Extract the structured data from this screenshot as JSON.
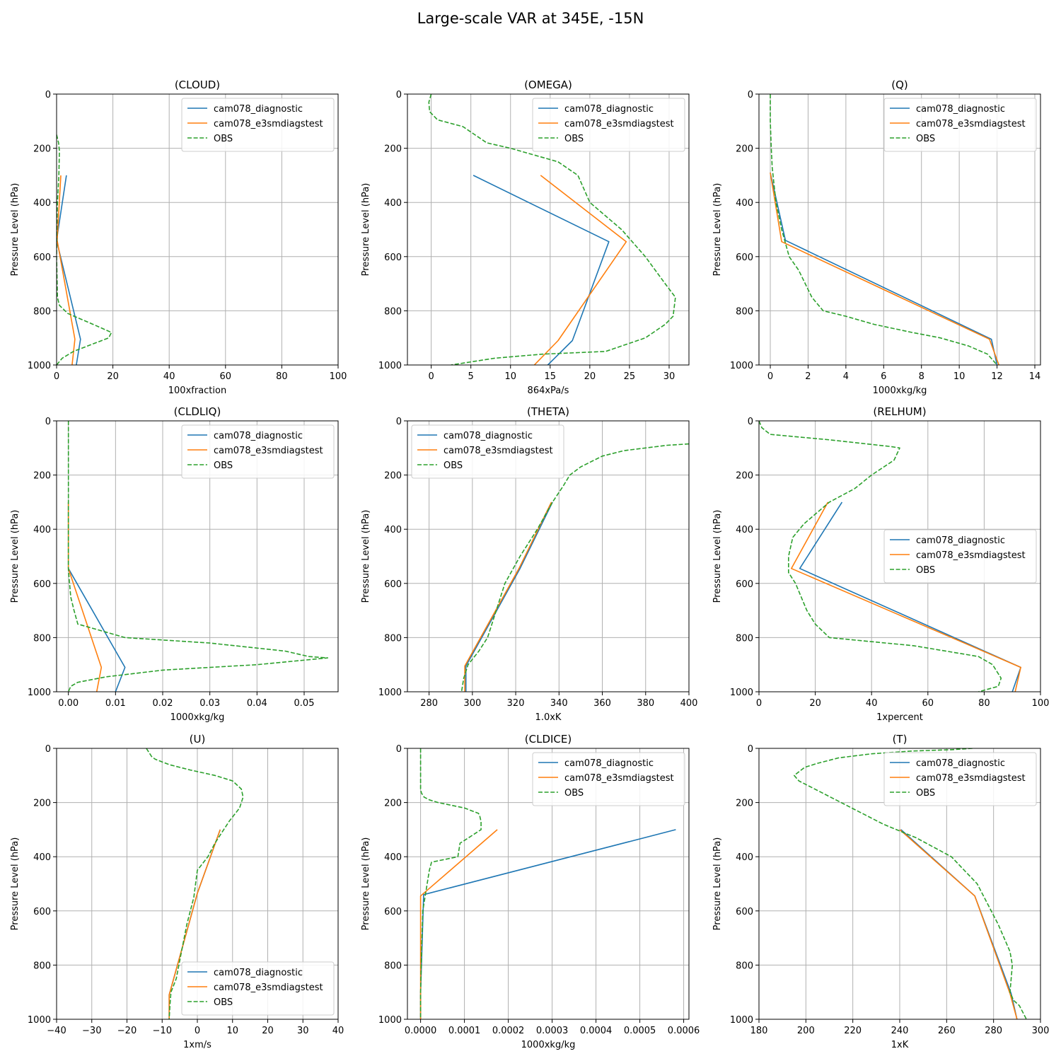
{
  "figure": {
    "title": "Large-scale VAR at 345E, -15N"
  },
  "colors": {
    "cam078_diagnostic": "#1f77b4",
    "cam078_e3smdiagstest": "#ff7f0e",
    "OBS": "#2ca02c",
    "grid": "#b0b0b0"
  },
  "chart_data": [
    {
      "type": "line",
      "title": "(CLOUD)",
      "xlabel": "100xfraction",
      "ylabel": "Pressure Level (hPa)",
      "xlim": [
        0,
        100
      ],
      "ylim": [
        1000,
        0
      ],
      "xticks": [
        0,
        20,
        40,
        60,
        80,
        100
      ],
      "xtick_labels": [
        "0",
        "20",
        "40",
        "60",
        "80",
        "100"
      ],
      "yticks": [
        0,
        200,
        400,
        600,
        800,
        1000
      ],
      "ytick_labels": [
        "0",
        "200",
        "400",
        "600",
        "800",
        "1000"
      ],
      "grid": true,
      "legend": "upper right",
      "series": [
        {
          "name": "cam078_diagnostic",
          "style": "solid",
          "x": [
            3.5,
            0.0,
            8.5,
            7.0
          ],
          "y": [
            300,
            540,
            905,
            1000
          ]
        },
        {
          "name": "cam078_e3smdiagstest",
          "style": "solid",
          "x": [
            1.5,
            0.2,
            6.5,
            5.5
          ],
          "y": [
            300,
            540,
            905,
            1000
          ]
        },
        {
          "name": "OBS",
          "style": "dashed",
          "x": [
            0.0,
            0.7,
            1.0,
            0.8,
            0.3,
            0.1,
            0.0,
            0.3,
            1.0,
            4.0,
            13.0,
            19.5,
            18.5,
            6.0,
            2.0,
            0.0
          ],
          "y": [
            150,
            180,
            210,
            300,
            400,
            500,
            600,
            750,
            780,
            810,
            850,
            880,
            900,
            950,
            975,
            1000
          ]
        }
      ]
    },
    {
      "type": "line",
      "title": "(OMEGA)",
      "xlabel": "864xPa/s",
      "ylabel": "Pressure Level (hPa)",
      "xlim": [
        -3,
        32.5
      ],
      "ylim": [
        1000,
        0
      ],
      "xticks": [
        0,
        5,
        10,
        15,
        20,
        25,
        30
      ],
      "xtick_labels": [
        "0",
        "5",
        "10",
        "15",
        "20",
        "25",
        "30"
      ],
      "yticks": [
        0,
        200,
        400,
        600,
        800,
        1000
      ],
      "ytick_labels": [
        "0",
        "200",
        "400",
        "600",
        "800",
        "1000"
      ],
      "grid": true,
      "legend": "upper right",
      "series": [
        {
          "name": "cam078_diagnostic",
          "style": "solid",
          "x": [
            5.3,
            22.4,
            17.8,
            14.7
          ],
          "y": [
            300,
            545,
            910,
            1000
          ]
        },
        {
          "name": "cam078_e3smdiagstest",
          "style": "solid",
          "x": [
            13.8,
            24.6,
            16.0,
            13.0
          ],
          "y": [
            300,
            545,
            910,
            1000
          ]
        },
        {
          "name": "OBS",
          "style": "dashed",
          "x": [
            0.0,
            -0.3,
            -0.2,
            0.8,
            4.0,
            7.0,
            10.0,
            16.0,
            18.5,
            20.0,
            22.0,
            24.0,
            27.0,
            29.5,
            30.8,
            30.5,
            29.5,
            27.0,
            22.0,
            14.0,
            8.0,
            2.5
          ],
          "y": [
            0,
            30,
            65,
            95,
            120,
            180,
            200,
            250,
            300,
            400,
            450,
            500,
            600,
            700,
            750,
            820,
            850,
            900,
            950,
            960,
            975,
            1000
          ]
        }
      ]
    },
    {
      "type": "line",
      "title": "(Q)",
      "xlabel": "1000xkg/kg",
      "ylabel": "Pressure Level (hPa)",
      "xlim": [
        -0.6,
        14.3
      ],
      "ylim": [
        1000,
        0
      ],
      "xticks": [
        0,
        2,
        4,
        6,
        8,
        10,
        12,
        14
      ],
      "xtick_labels": [
        "0",
        "2",
        "4",
        "6",
        "8",
        "10",
        "12",
        "14"
      ],
      "yticks": [
        0,
        200,
        400,
        600,
        800,
        1000
      ],
      "ytick_labels": [
        "0",
        "200",
        "400",
        "600",
        "800",
        "1000"
      ],
      "grid": true,
      "legend": "upper right",
      "series": [
        {
          "name": "cam078_diagnostic",
          "style": "solid",
          "x": [
            0.0,
            0.8,
            11.7,
            12.0
          ],
          "y": [
            290,
            540,
            905,
            1000
          ]
        },
        {
          "name": "cam078_e3smdiagstest",
          "style": "solid",
          "x": [
            0.0,
            0.6,
            11.6,
            12.1
          ],
          "y": [
            290,
            545,
            905,
            1000
          ]
        },
        {
          "name": "OBS",
          "style": "dashed",
          "x": [
            0.0,
            0.0,
            0.05,
            0.1,
            0.3,
            0.6,
            1.0,
            1.5,
            2.2,
            2.8,
            4.0,
            5.5,
            7.5,
            9.0,
            10.5,
            11.5,
            12.0
          ],
          "y": [
            0,
            100,
            200,
            270,
            400,
            500,
            600,
            650,
            750,
            800,
            820,
            850,
            880,
            900,
            930,
            960,
            1000
          ]
        }
      ]
    },
    {
      "type": "line",
      "title": "(CLDLIQ)",
      "xlabel": "1000xkg/kg",
      "ylabel": "Pressure Level (hPa)",
      "xlim": [
        -0.0025,
        0.0572
      ],
      "ylim": [
        1000,
        0
      ],
      "xticks": [
        0.0,
        0.01,
        0.02,
        0.03,
        0.04,
        0.05
      ],
      "xtick_labels": [
        "0.00",
        "0.01",
        "0.02",
        "0.03",
        "0.04",
        "0.05"
      ],
      "yticks": [
        0,
        200,
        400,
        600,
        800,
        1000
      ],
      "ytick_labels": [
        "0",
        "200",
        "400",
        "600",
        "800",
        "1000"
      ],
      "grid": true,
      "legend": "upper right",
      "series": [
        {
          "name": "cam078_diagnostic",
          "style": "solid",
          "x": [
            0.0,
            0.0,
            0.012,
            0.01
          ],
          "y": [
            300,
            545,
            910,
            1000
          ]
        },
        {
          "name": "cam078_e3smdiagstest",
          "style": "solid",
          "x": [
            0.0,
            0.0,
            0.007,
            0.006
          ],
          "y": [
            300,
            545,
            910,
            1000
          ]
        },
        {
          "name": "OBS",
          "style": "dashed",
          "x": [
            0.0,
            0.0,
            0.0,
            0.0,
            0.0005,
            0.0012,
            0.002,
            0.008,
            0.012,
            0.03,
            0.046,
            0.051,
            0.055,
            0.04,
            0.02,
            0.008,
            0.002,
            0.0005,
            0.0
          ],
          "y": [
            0,
            200,
            400,
            550,
            650,
            700,
            750,
            780,
            800,
            820,
            850,
            870,
            875,
            900,
            920,
            945,
            965,
            980,
            1000
          ]
        }
      ]
    },
    {
      "type": "line",
      "title": "(THETA)",
      "xlabel": "1.0xK",
      "ylabel": "Pressure Level (hPa)",
      "xlim": [
        270,
        400
      ],
      "ylim": [
        1000,
        0
      ],
      "xticks": [
        280,
        300,
        320,
        340,
        360,
        380,
        400
      ],
      "xtick_labels": [
        "280",
        "300",
        "320",
        "340",
        "360",
        "380",
        "400"
      ],
      "yticks": [
        0,
        200,
        400,
        600,
        800,
        1000
      ],
      "ytick_labels": [
        "0",
        "200",
        "400",
        "600",
        "800",
        "1000"
      ],
      "grid": true,
      "legend": "upper left",
      "series": [
        {
          "name": "cam078_diagnostic",
          "style": "solid",
          "x": [
            337.0,
            322.0,
            297.0,
            297.0
          ],
          "y": [
            300,
            545,
            905,
            1000
          ]
        },
        {
          "name": "cam078_e3smdiagstest",
          "style": "solid",
          "x": [
            336.5,
            321.5,
            296.5,
            296.5
          ],
          "y": [
            300,
            545,
            905,
            1000
          ]
        },
        {
          "name": "OBS",
          "style": "dashed",
          "x": [
            400,
            390,
            380,
            370,
            360,
            350,
            345,
            342,
            337,
            330,
            322,
            315,
            307,
            303,
            298,
            296,
            295
          ],
          "y": [
            85,
            90,
            100,
            110,
            130,
            170,
            200,
            240,
            300,
            400,
            500,
            600,
            800,
            850,
            900,
            950,
            1000
          ]
        }
      ]
    },
    {
      "type": "line",
      "title": "(RELHUM)",
      "xlabel": "1xpercent",
      "ylabel": "Pressure Level (hPa)",
      "xlim": [
        0,
        100
      ],
      "ylim": [
        1000,
        0
      ],
      "xticks": [
        0,
        20,
        40,
        60,
        80,
        100
      ],
      "xtick_labels": [
        "0",
        "20",
        "40",
        "60",
        "80",
        "100"
      ],
      "yticks": [
        0,
        200,
        400,
        600,
        800,
        1000
      ],
      "ytick_labels": [
        "0",
        "200",
        "400",
        "600",
        "800",
        "1000"
      ],
      "grid": true,
      "legend": "center right",
      "series": [
        {
          "name": "cam078_diagnostic",
          "style": "solid",
          "x": [
            29.5,
            14.5,
            93.0,
            90.0
          ],
          "y": [
            300,
            545,
            910,
            1000
          ]
        },
        {
          "name": "cam078_e3smdiagstest",
          "style": "solid",
          "x": [
            24.5,
            11.5,
            93.0,
            91.0
          ],
          "y": [
            300,
            545,
            910,
            1000
          ]
        },
        {
          "name": "OBS",
          "style": "dashed",
          "x": [
            0,
            1,
            4,
            25,
            47,
            50,
            48,
            40,
            34,
            25,
            16,
            12,
            10.5,
            10.5,
            13,
            15,
            17,
            20,
            25,
            55,
            78,
            83,
            86,
            85,
            78
          ],
          "y": [
            0,
            25,
            50,
            70,
            95,
            100,
            145,
            200,
            250,
            300,
            380,
            430,
            500,
            560,
            600,
            650,
            700,
            750,
            800,
            830,
            870,
            900,
            950,
            980,
            1000
          ]
        }
      ]
    },
    {
      "type": "line",
      "title": "(U)",
      "xlabel": "1xm/s",
      "ylabel": "Pressure Level (hPa)",
      "xlim": [
        -40,
        40
      ],
      "ylim": [
        1000,
        0
      ],
      "xticks": [
        -40,
        -30,
        -20,
        -10,
        0,
        10,
        20,
        30,
        40
      ],
      "xtick_labels": [
        "−40",
        "−30",
        "−20",
        "−10",
        "0",
        "10",
        "20",
        "30",
        "40"
      ],
      "yticks": [
        0,
        200,
        400,
        600,
        800,
        1000
      ],
      "ytick_labels": [
        "0",
        "200",
        "400",
        "600",
        "800",
        "1000"
      ],
      "grid": true,
      "legend": "lower right",
      "series": [
        {
          "name": "cam078_diagnostic",
          "style": "solid",
          "x": [
            6.5,
            0.0,
            -8.0,
            -8.0
          ],
          "y": [
            300,
            535,
            910,
            1000
          ]
        },
        {
          "name": "cam078_e3smdiagstest",
          "style": "solid",
          "x": [
            6.5,
            0.0,
            -8.0,
            -8.0
          ],
          "y": [
            300,
            535,
            910,
            1000
          ]
        },
        {
          "name": "OBS",
          "style": "dashed",
          "x": [
            -14.5,
            -13.0,
            -12.0,
            -8.0,
            -2.0,
            5.0,
            10.0,
            12.5,
            13.0,
            12.0,
            9.0,
            5.0,
            3.0,
            0.0,
            -1.0,
            -3.0,
            -4.5,
            -6.0,
            -7.5,
            -7.8,
            -8.0
          ],
          "y": [
            0,
            30,
            40,
            60,
            80,
            100,
            120,
            150,
            180,
            220,
            270,
            350,
            400,
            450,
            550,
            650,
            750,
            850,
            900,
            950,
            1000
          ]
        }
      ]
    },
    {
      "type": "line",
      "title": "(CLDICE)",
      "xlabel": "1000xkg/kg",
      "ylabel": "Pressure Level (hPa)",
      "xlim": [
        -3e-05,
        0.000612
      ],
      "ylim": [
        1000,
        0
      ],
      "xticks": [
        0.0,
        0.0001,
        0.0002,
        0.0003,
        0.0004,
        0.0005,
        0.0006
      ],
      "xtick_labels": [
        "0.0000",
        "0.0001",
        "0.0002",
        "0.0003",
        "0.0004",
        "0.0005",
        "0.0006"
      ],
      "yticks": [
        0,
        200,
        400,
        600,
        800,
        1000
      ],
      "ytick_labels": [
        "0",
        "200",
        "400",
        "600",
        "800",
        "1000"
      ],
      "grid": true,
      "legend": "upper right",
      "series": [
        {
          "name": "cam078_diagnostic",
          "style": "solid",
          "x": [
            0.000582,
            7e-06,
            0.0,
            0.0
          ],
          "y": [
            300,
            540,
            905,
            1000
          ]
        },
        {
          "name": "cam078_e3smdiagstest",
          "style": "solid",
          "x": [
            0.000175,
            0.0,
            0.0,
            0.0
          ],
          "y": [
            300,
            545,
            905,
            1000
          ]
        },
        {
          "name": "OBS",
          "style": "dashed",
          "x": [
            0.0,
            0.0,
            0.0,
            2e-06,
            8e-06,
            2e-05,
            4e-05,
            0.0001,
            0.000132,
            0.000135,
            0.000138,
            0.000138,
            0.0001,
            9e-05,
            8.5e-05,
            2.5e-05,
            2e-05,
            1e-05,
            5e-06,
            3e-06,
            0.0,
            0.0
          ],
          "y": [
            0,
            100,
            150,
            165,
            180,
            190,
            200,
            220,
            240,
            250,
            270,
            300,
            340,
            350,
            400,
            420,
            450,
            550,
            600,
            700,
            900,
            1000
          ]
        }
      ]
    },
    {
      "type": "line",
      "title": "(T)",
      "xlabel": "1xK",
      "ylabel": "Pressure Level (hPa)",
      "xlim": [
        180,
        300
      ],
      "ylim": [
        1000,
        0
      ],
      "xticks": [
        180,
        200,
        220,
        240,
        260,
        280,
        300
      ],
      "xtick_labels": [
        "180",
        "200",
        "220",
        "240",
        "260",
        "280",
        "300"
      ],
      "yticks": [
        0,
        200,
        400,
        600,
        800,
        1000
      ],
      "ytick_labels": [
        "0",
        "200",
        "400",
        "600",
        "800",
        "1000"
      ],
      "grid": true,
      "legend": "upper right",
      "series": [
        {
          "name": "cam078_diagnostic",
          "style": "solid",
          "x": [
            240.5,
            272.0,
            287.5,
            290.0
          ],
          "y": [
            300,
            545,
            905,
            1000
          ]
        },
        {
          "name": "cam078_e3smdiagstest",
          "style": "solid",
          "x": [
            240.0,
            272.0,
            287.0,
            290.0
          ],
          "y": [
            300,
            545,
            905,
            1000
          ]
        },
        {
          "name": "OBS",
          "style": "dashed",
          "x": [
            271.0,
            262.0,
            245.0,
            228.0,
            214.0,
            205.0,
            199.5,
            198.0,
            195.0,
            197.0,
            215.0,
            233.0,
            247.0,
            262.0,
            273.0,
            282.0,
            287.0,
            288.0,
            287.0,
            288.5,
            291.0,
            294.0
          ],
          "y": [
            0,
            5,
            10,
            20,
            35,
            55,
            70,
            80,
            100,
            120,
            200,
            280,
            330,
            400,
            500,
            650,
            750,
            800,
            900,
            930,
            950,
            1000
          ]
        }
      ]
    }
  ]
}
